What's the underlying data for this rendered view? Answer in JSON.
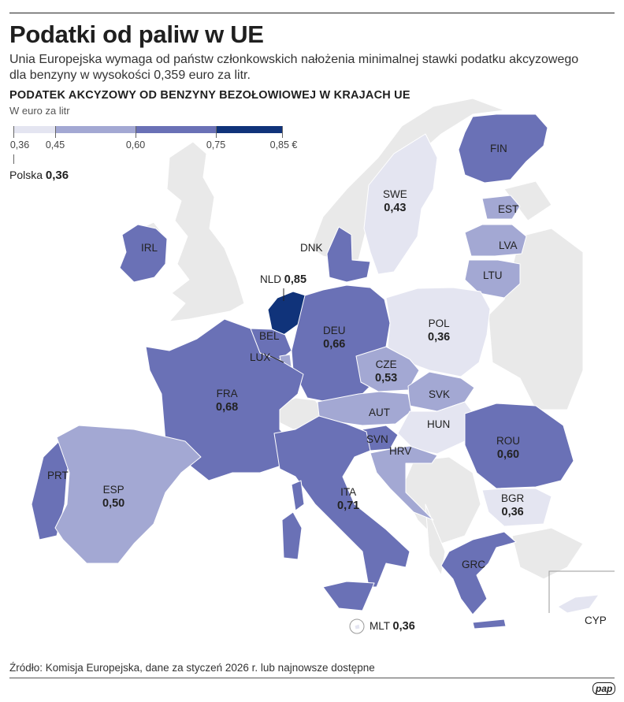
{
  "title": "Podatki od paliw w UE",
  "subtitle": "Unia Europejska wymaga od państw członkowskich nałożenia minimalnej stawki podatku akcyzowego dla benzyny w wysokości 0,359 euro za litr.",
  "map_title": "PODATEK AKCYZOWY OD BENZYNY BEZOŁOWIOWEJ W KRAJACH UE",
  "unit": "W euro za litr",
  "legend": {
    "ticks": [
      "0,36",
      "0,45",
      "0,60",
      "0,75",
      "0,85 €"
    ],
    "colors": [
      "#e4e5f1",
      "#a3a8d3",
      "#6a71b6",
      "#10337a"
    ]
  },
  "poland_note": {
    "name": "Polska",
    "value": "0,36"
  },
  "countries": [
    {
      "code": "FIN",
      "value": ""
    },
    {
      "code": "SWE",
      "value": "0,43"
    },
    {
      "code": "EST",
      "value": ""
    },
    {
      "code": "LVA",
      "value": ""
    },
    {
      "code": "LTU",
      "value": ""
    },
    {
      "code": "DNK",
      "value": ""
    },
    {
      "code": "IRL",
      "value": ""
    },
    {
      "code": "NLD",
      "value": "0,85"
    },
    {
      "code": "BEL",
      "value": ""
    },
    {
      "code": "LUX",
      "value": ""
    },
    {
      "code": "DEU",
      "value": "0,66"
    },
    {
      "code": "POL",
      "value": "0,36"
    },
    {
      "code": "CZE",
      "value": "0,53"
    },
    {
      "code": "SVK",
      "value": ""
    },
    {
      "code": "AUT",
      "value": ""
    },
    {
      "code": "HUN",
      "value": ""
    },
    {
      "code": "FRA",
      "value": "0,68"
    },
    {
      "code": "SVN",
      "value": ""
    },
    {
      "code": "HRV",
      "value": ""
    },
    {
      "code": "ROU",
      "value": "0,60"
    },
    {
      "code": "PRT",
      "value": ""
    },
    {
      "code": "ESP",
      "value": "0,50"
    },
    {
      "code": "ITA",
      "value": "0,71"
    },
    {
      "code": "BGR",
      "value": "0,36"
    },
    {
      "code": "GRC",
      "value": ""
    },
    {
      "code": "MLT",
      "value": "0,36"
    },
    {
      "code": "CYP",
      "value": ""
    }
  ],
  "source": "Źródło: Komisja Europejska, dane za styczeń 2026 r. lub najnowsze dostępne",
  "logo": "pap"
}
